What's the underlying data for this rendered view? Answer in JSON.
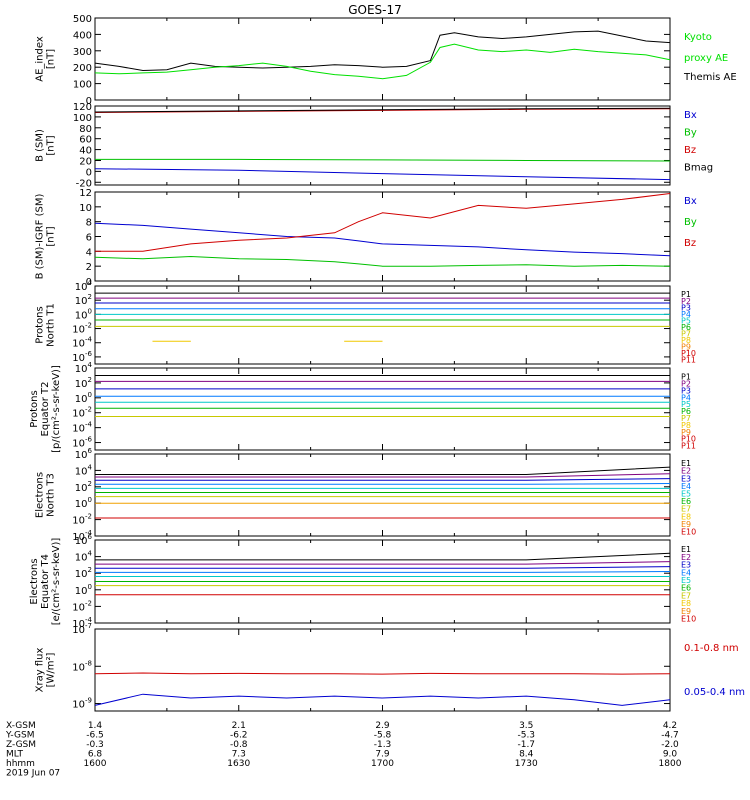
{
  "title": "GOES-17",
  "x_axis": {
    "tick_labels": [
      "1.4",
      "2.1",
      "2.9",
      "3.5",
      "4.2"
    ],
    "rows": [
      {
        "label": "X-GSM",
        "values": [
          "1.4",
          "2.1",
          "2.9",
          "3.5",
          "4.2"
        ]
      },
      {
        "label": "Y-GSM",
        "values": [
          "-6.5",
          "-6.2",
          "-5.8",
          "-5.3",
          "-4.7"
        ]
      },
      {
        "label": "Z-GSM",
        "values": [
          "-0.3",
          "-0.8",
          "-1.3",
          "-1.7",
          "-2.0"
        ]
      },
      {
        "label": "MLT",
        "values": [
          "6.8",
          "7.3",
          "7.9",
          "8.4",
          "9.0"
        ]
      },
      {
        "label": "hhmm",
        "values": [
          "1600",
          "1630",
          "1700",
          "1730",
          "1800"
        ]
      }
    ],
    "date": "2019 Jun 07"
  },
  "chart_data": [
    {
      "type": "line",
      "ylabel": "AE_index\n[nT]",
      "ylim": [
        0,
        500
      ],
      "scale": "linear",
      "yticks": [
        "0",
        "100",
        "200",
        "300",
        "400",
        "500"
      ],
      "legend": [
        {
          "text": "Kyoto",
          "color": "#00e000"
        },
        {
          "text": "proxy AE",
          "color": "#00e000"
        },
        {
          "text": "Themis AE",
          "color": "#000000"
        }
      ],
      "x": [
        1600,
        1605,
        1610,
        1615,
        1620,
        1625,
        1630,
        1635,
        1640,
        1645,
        1650,
        1655,
        1700,
        1705,
        1710,
        1712,
        1715,
        1720,
        1725,
        1730,
        1735,
        1740,
        1745,
        1750,
        1755,
        1800
      ],
      "series": [
        {
          "name": "Themis AE",
          "color": "#000000",
          "values": [
            225,
            205,
            180,
            185,
            225,
            205,
            200,
            195,
            200,
            205,
            215,
            210,
            200,
            205,
            240,
            395,
            410,
            385,
            375,
            385,
            400,
            415,
            420,
            390,
            360,
            350
          ]
        },
        {
          "name": "Kyoto proxy AE",
          "color": "#00e000",
          "values": [
            165,
            160,
            165,
            170,
            185,
            200,
            210,
            225,
            205,
            175,
            155,
            145,
            130,
            150,
            230,
            320,
            340,
            305,
            295,
            305,
            290,
            310,
            295,
            285,
            275,
            245
          ]
        }
      ]
    },
    {
      "type": "line",
      "ylabel": "B (SM)\n[nT]",
      "ylim": [
        -25,
        120
      ],
      "scale": "linear",
      "yticks": [
        "-20",
        "0",
        "20",
        "40",
        "60",
        "80",
        "100",
        "120"
      ],
      "legend": [
        {
          "text": "Bx",
          "color": "#0000d0"
        },
        {
          "text": "By",
          "color": "#00c000"
        },
        {
          "text": "Bz",
          "color": "#d00000"
        },
        {
          "text": "Bmag",
          "color": "#000000"
        }
      ],
      "x": [
        1600,
        1630,
        1700,
        1730,
        1800
      ],
      "series": [
        {
          "name": "Bx",
          "color": "#0000d0",
          "values": [
            5,
            2,
            -4,
            -10,
            -15
          ]
        },
        {
          "name": "By",
          "color": "#00c000",
          "values": [
            22,
            22,
            21,
            20,
            19
          ]
        },
        {
          "name": "Bz",
          "color": "#d00000",
          "values": [
            108,
            110,
            112,
            114,
            115
          ]
        },
        {
          "name": "Bmag",
          "color": "#000000",
          "values": [
            109,
            111,
            113,
            115,
            116
          ]
        }
      ]
    },
    {
      "type": "line",
      "ylabel": "B (SM)-IGRF (SM)\n[nT]",
      "ylim": [
        0,
        12
      ],
      "scale": "linear",
      "yticks": [
        "0",
        "2",
        "4",
        "6",
        "8",
        "10",
        "12"
      ],
      "legend": [
        {
          "text": "Bx",
          "color": "#0000d0"
        },
        {
          "text": "By",
          "color": "#00c000"
        },
        {
          "text": "Bz",
          "color": "#d00000"
        }
      ],
      "x": [
        1600,
        1610,
        1620,
        1630,
        1640,
        1650,
        1655,
        1700,
        1710,
        1720,
        1730,
        1740,
        1750,
        1800
      ],
      "series": [
        {
          "name": "Bx",
          "color": "#0000d0",
          "values": [
            7.8,
            7.5,
            7.0,
            6.5,
            6.0,
            5.8,
            5.4,
            5.0,
            4.8,
            4.6,
            4.2,
            3.9,
            3.7,
            3.4
          ]
        },
        {
          "name": "By",
          "color": "#00c000",
          "values": [
            3.2,
            3.0,
            3.3,
            3.0,
            2.9,
            2.6,
            2.3,
            2.0,
            2.0,
            2.1,
            2.2,
            2.0,
            2.1,
            2.0
          ]
        },
        {
          "name": "Bz",
          "color": "#d00000",
          "values": [
            4.0,
            4.0,
            5.0,
            5.5,
            5.8,
            6.5,
            8.0,
            9.2,
            8.5,
            10.2,
            9.8,
            10.4,
            11.0,
            11.8
          ]
        }
      ]
    },
    {
      "type": "line",
      "ylabel": "Protons\nNorth T1",
      "ylim": [
        -7,
        4
      ],
      "scale": "log10",
      "yticks": [
        "10^4",
        "10^2",
        "10^0",
        "10^-2",
        "10^-4",
        "10^-6"
      ],
      "legend": [
        "P1",
        "P2",
        "P3",
        "P4",
        "P5",
        "P6",
        "P7",
        "P8",
        "P9",
        "P10",
        "P11"
      ],
      "x": [
        1600,
        1800
      ],
      "series": [
        {
          "name": "P1",
          "color": "#000000",
          "values": [
            3.0,
            3.0
          ]
        },
        {
          "name": "P2",
          "color": "#800080",
          "values": [
            2.3,
            2.3
          ]
        },
        {
          "name": "P3",
          "color": "#0000c8",
          "values": [
            1.6,
            1.6
          ]
        },
        {
          "name": "P4",
          "color": "#0078ff",
          "values": [
            0.8,
            0.8
          ]
        },
        {
          "name": "P5",
          "color": "#00c8c8",
          "values": [
            0.0,
            0.0
          ]
        },
        {
          "name": "P6",
          "color": "#00b400",
          "values": [
            -0.8,
            -0.8
          ]
        },
        {
          "name": "P7",
          "color": "#c8c800",
          "values": [
            -1.7,
            -1.7
          ]
        },
        {
          "name": "P9",
          "color": "#f0c800",
          "values": [
            -3.8,
            -3.8
          ],
          "segments": [
            [
              1612,
              1620
            ],
            [
              1652,
              1660
            ]
          ]
        }
      ]
    },
    {
      "type": "line",
      "ylabel": "Protons\nEquator T2\n[p/(cm²-s-sr-keV)]",
      "ylim": [
        -7,
        4
      ],
      "scale": "log10",
      "yticks": [
        "10^4",
        "10^2",
        "10^0",
        "10^-2",
        "10^-4",
        "10^-6"
      ],
      "legend": [
        "P1",
        "P2",
        "P3",
        "P4",
        "P5",
        "P6",
        "P7",
        "P8",
        "P9",
        "P10",
        "P11"
      ],
      "x": [
        1600,
        1800
      ],
      "series": [
        {
          "name": "P1",
          "color": "#000000",
          "values": [
            3.0,
            3.0
          ]
        },
        {
          "name": "P2",
          "color": "#800080",
          "values": [
            2.2,
            2.2
          ]
        },
        {
          "name": "P3",
          "color": "#0000c8",
          "values": [
            1.2,
            1.2
          ]
        },
        {
          "name": "P4",
          "color": "#0078ff",
          "values": [
            0.2,
            0.2
          ]
        },
        {
          "name": "P5",
          "color": "#00c8c8",
          "values": [
            -0.6,
            -0.6
          ]
        },
        {
          "name": "P6",
          "color": "#00b400",
          "values": [
            -1.4,
            -1.4
          ]
        },
        {
          "name": "P7",
          "color": "#c8c800",
          "values": [
            -2.5,
            -2.5
          ]
        }
      ]
    },
    {
      "type": "line",
      "ylabel": "Electrons\nNorth T3",
      "ylim": [
        -4,
        6
      ],
      "scale": "log10",
      "yticks": [
        "10^6",
        "10^4",
        "10^2",
        "10^0",
        "10^-2",
        "10^-4"
      ],
      "legend": [
        "E1",
        "E2",
        "E3",
        "E4",
        "E5",
        "E6",
        "E7",
        "E8",
        "E9",
        "E10"
      ],
      "x": [
        1600,
        1730,
        1800
      ],
      "series": [
        {
          "name": "E1",
          "color": "#000000",
          "values": [
            3.5,
            3.5,
            4.4
          ]
        },
        {
          "name": "E2",
          "color": "#800080",
          "values": [
            3.2,
            3.2,
            3.6
          ]
        },
        {
          "name": "E3",
          "color": "#0000c8",
          "values": [
            2.8,
            2.8,
            3.0
          ]
        },
        {
          "name": "E4",
          "color": "#0078ff",
          "values": [
            2.3,
            2.3,
            2.4
          ]
        },
        {
          "name": "E5",
          "color": "#00c8c8",
          "values": [
            1.8,
            1.8,
            1.8
          ]
        },
        {
          "name": "E6",
          "color": "#00b400",
          "values": [
            1.3,
            1.3,
            1.3
          ]
        },
        {
          "name": "E7",
          "color": "#c8c800",
          "values": [
            0.8,
            0.8,
            0.8
          ]
        },
        {
          "name": "E8",
          "color": "#f0a000",
          "values": [
            0.0,
            0.0,
            0.0
          ]
        },
        {
          "name": "E9",
          "color": "#d00000",
          "values": [
            -1.8,
            -1.8,
            -1.8
          ]
        }
      ]
    },
    {
      "type": "line",
      "ylabel": "Electrons\nEquator T4\n[e/(cm²-s-sr-keV)]",
      "ylim": [
        -4,
        6
      ],
      "scale": "log10",
      "yticks": [
        "10^6",
        "10^4",
        "10^2",
        "10^0",
        "10^-2",
        "10^-4"
      ],
      "legend": [
        "E1",
        "E2",
        "E3",
        "E4",
        "E5",
        "E6",
        "E7",
        "E8",
        "E9",
        "E10"
      ],
      "x": [
        1600,
        1730,
        1800
      ],
      "series": [
        {
          "name": "E1",
          "color": "#000000",
          "values": [
            3.6,
            3.6,
            4.4
          ]
        },
        {
          "name": "E2",
          "color": "#800080",
          "values": [
            3.1,
            3.1,
            3.4
          ]
        },
        {
          "name": "E3",
          "color": "#0000c8",
          "values": [
            2.6,
            2.6,
            2.8
          ]
        },
        {
          "name": "E4",
          "color": "#0078ff",
          "values": [
            2.1,
            2.1,
            2.2
          ]
        },
        {
          "name": "E5",
          "color": "#00c8c8",
          "values": [
            1.6,
            1.6,
            1.6
          ]
        },
        {
          "name": "E6",
          "color": "#00b400",
          "values": [
            1.0,
            1.0,
            1.0
          ]
        },
        {
          "name": "E7",
          "color": "#c8c800",
          "values": [
            0.5,
            0.5,
            0.5
          ]
        },
        {
          "name": "E8",
          "color": "#d00000",
          "values": [
            -0.6,
            -0.6,
            -0.6
          ]
        }
      ]
    },
    {
      "type": "line",
      "ylabel": "Xray flux\n[W/m²]",
      "ylim": [
        -9.2,
        -7
      ],
      "scale": "log10",
      "yticks": [
        "10^-7",
        "10^-8",
        "10^-9"
      ],
      "legend": [
        {
          "text": "0.1-0.8 nm",
          "color": "#d00000"
        },
        {
          "text": "0.05-0.4 nm",
          "color": "#0000d0"
        }
      ],
      "x": [
        1600,
        1610,
        1620,
        1630,
        1640,
        1650,
        1700,
        1710,
        1720,
        1730,
        1740,
        1750,
        1800
      ],
      "series": [
        {
          "name": "0.1-0.8 nm",
          "color": "#d00000",
          "values": [
            -8.2,
            -8.18,
            -8.2,
            -8.19,
            -8.2,
            -8.2,
            -8.21,
            -8.19,
            -8.2,
            -8.2,
            -8.2,
            -8.21,
            -8.2
          ]
        },
        {
          "name": "0.05-0.4 nm",
          "color": "#0000d0",
          "values": [
            -9.05,
            -8.75,
            -8.85,
            -8.8,
            -8.85,
            -8.8,
            -8.85,
            -8.8,
            -8.85,
            -8.8,
            -8.9,
            -9.05,
            -8.9
          ]
        }
      ]
    }
  ]
}
